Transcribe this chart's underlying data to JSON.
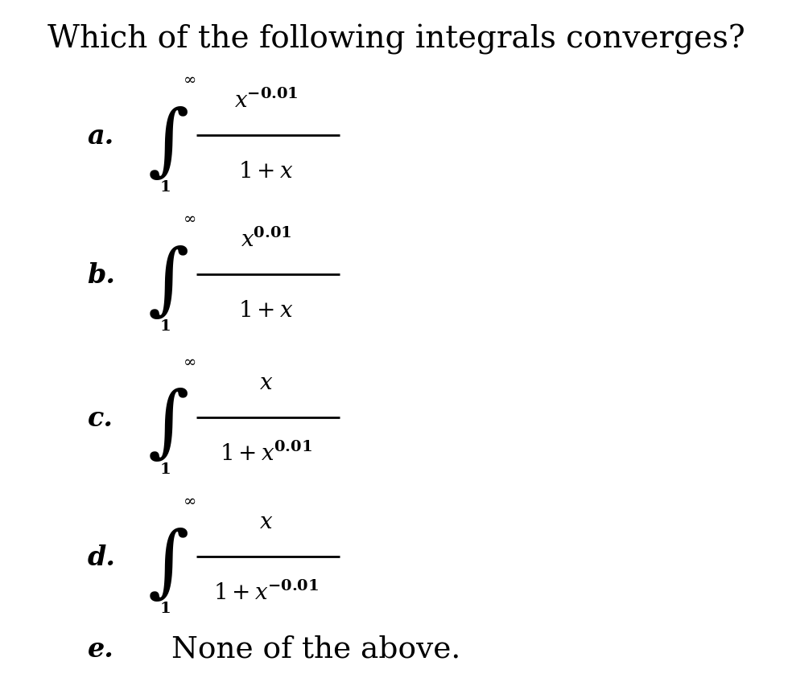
{
  "title": "Which of the following integrals converges?",
  "title_fontsize": 28,
  "background_color": "#ffffff",
  "text_color": "#000000",
  "options": [
    {
      "label": "a.",
      "numerator": "$\\mathbf{\\mathit{x}}^{\\mathbf{-0.01}}$",
      "denominator": "$\\mathbf{\\mathit{1+x}}$",
      "num_simple": "x^{-0.01}",
      "den_simple": "1+x"
    },
    {
      "label": "b.",
      "numerator": "$\\mathbf{\\mathit{x}}^{\\mathbf{0.01}}$",
      "denominator": "$\\mathbf{\\mathit{1+x}}$",
      "num_simple": "x^{0.01}",
      "den_simple": "1+x"
    },
    {
      "label": "c.",
      "numerator": "$\\mathbf{\\mathit{x}}$",
      "denominator": "$\\mathbf{\\mathit{1+x}}^{\\mathbf{0.01}}$",
      "num_simple": "x",
      "den_simple": "1+x^{0.01}"
    },
    {
      "label": "d.",
      "numerator": "$\\mathbf{\\mathit{x}}$",
      "denominator": "$\\mathbf{\\mathit{1+x}}^{\\mathbf{-0.01}}$",
      "num_simple": "x",
      "den_simple": "1+x^{-0.01}"
    }
  ],
  "label_fontsize": 24,
  "math_fontsize": 20,
  "int_fontsize": 50,
  "limit_fontsize": 14,
  "last_fontsize": 27
}
